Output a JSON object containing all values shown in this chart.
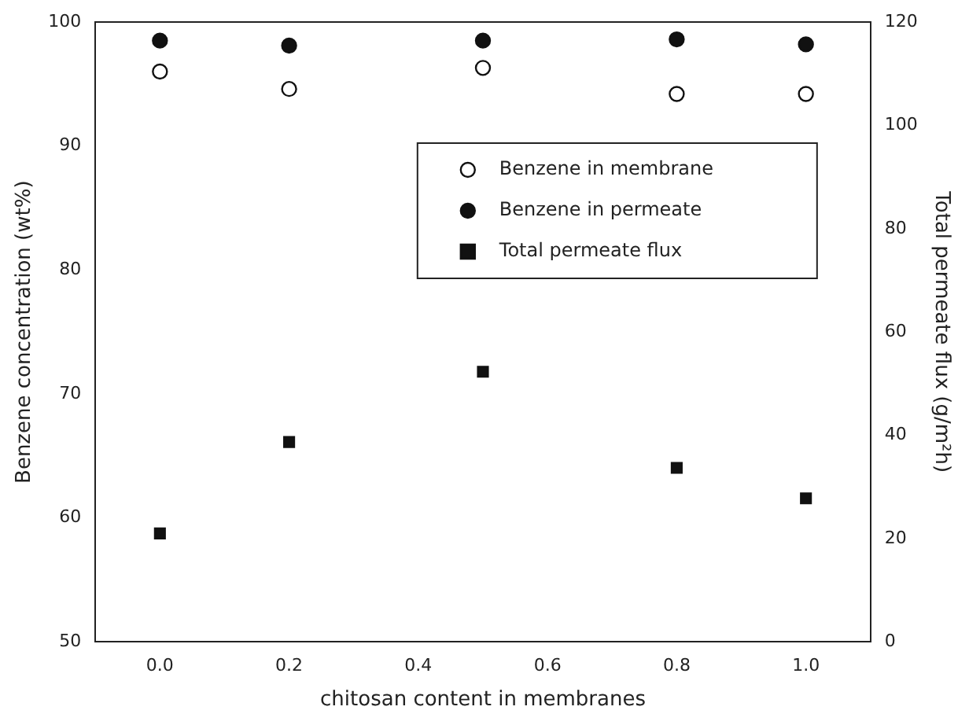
{
  "chart_data": {
    "type": "scatter",
    "xlabel": "chitosan content in membranes",
    "ylabel": "Benzene concentration (wt%)",
    "y2label": "Total permeate flux (g/m²h)",
    "x": [
      0.0,
      0.2,
      0.5,
      0.8,
      1.0
    ],
    "series": [
      {
        "name": "Benzene in membrane",
        "color": "#ffffff",
        "marker": "circle",
        "values": [
          96.0,
          94.6,
          96.3,
          94.2,
          94.2
        ]
      },
      {
        "name": "Benzene in permeate",
        "color": "#111111",
        "marker": "circle",
        "values": [
          98.5,
          98.1,
          98.5,
          98.6,
          98.2
        ]
      },
      {
        "name": "Total permeate flux",
        "color": "#111111",
        "marker": "square",
        "axis": "y2",
        "values": [
          21,
          38.7,
          52.3,
          33.7,
          27.8
        ]
      }
    ],
    "xlim": [
      -0.1,
      1.1
    ],
    "xticks": [
      {
        "value": 0,
        "label": "0.0"
      },
      0.2,
      0.4,
      0.6,
      0.8,
      {
        "value": 1,
        "label": "1.0"
      }
    ],
    "ylim": [
      50,
      100
    ],
    "yticks": [
      50,
      60,
      70,
      80,
      90,
      100
    ],
    "y2lim": [
      0,
      120
    ],
    "y2ticks": [
      0,
      20,
      40,
      60,
      80,
      100,
      120
    ],
    "legend": "top right",
    "grid": false
  }
}
